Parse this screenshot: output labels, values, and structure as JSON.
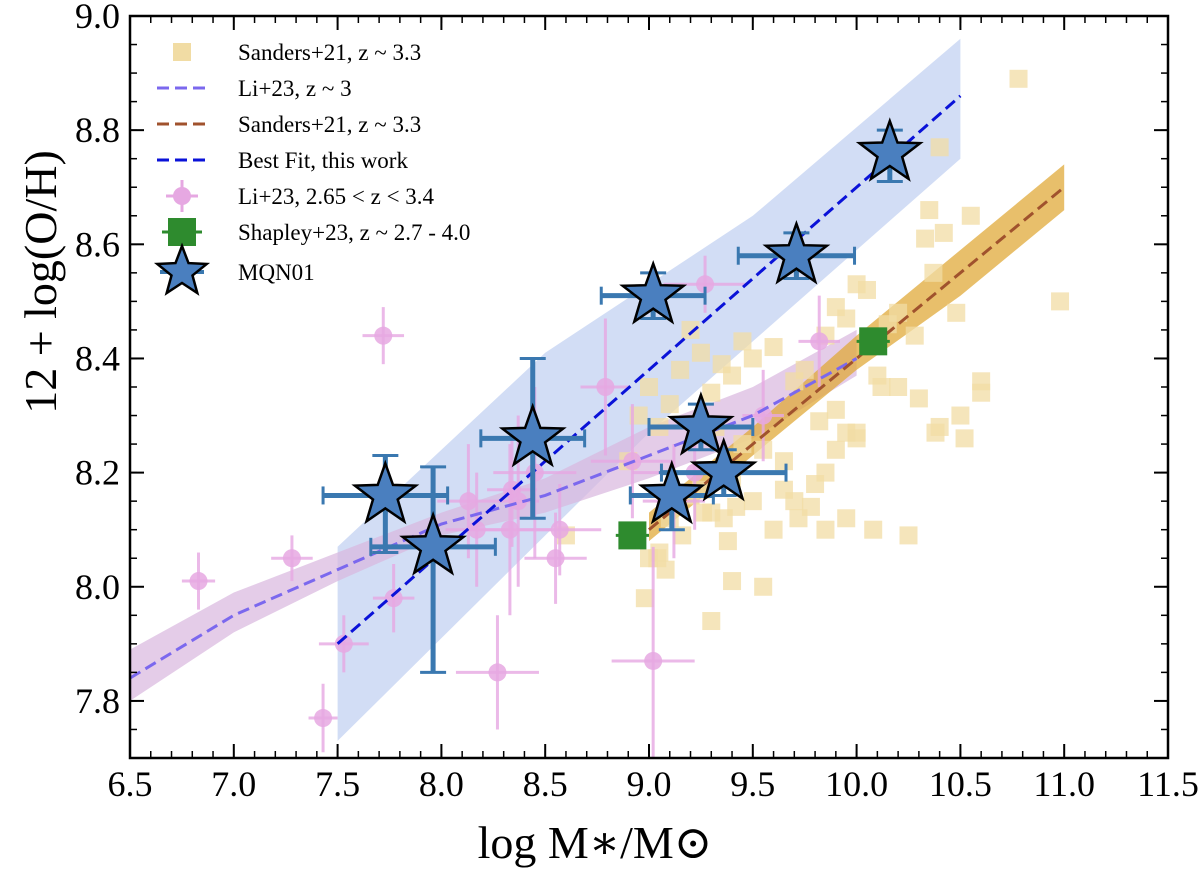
{
  "chart_data": {
    "type": "scatter",
    "title": "",
    "xlabel": "log M∗/M⊙",
    "ylabel": "12 + log(O/H)",
    "xlim": [
      6.5,
      11.5
    ],
    "ylim": [
      7.7,
      9.0
    ],
    "x_ticks": [
      "6.5",
      "7.0",
      "7.5",
      "8.0",
      "8.5",
      "9.0",
      "9.5",
      "10.0",
      "10.5",
      "11.0",
      "11.5"
    ],
    "y_ticks": [
      "7.8",
      "8.0",
      "8.2",
      "8.4",
      "8.6",
      "8.8",
      "9.0"
    ],
    "legend_position": "top-left",
    "grid": false,
    "colors": {
      "sanders_points": "#f1dca4",
      "li_line": "#7b68ee",
      "li_band": "#d8b6de",
      "sanders_line": "#a0522d",
      "sanders_band": "#e0a93a",
      "best_fit_line": "#0a12d8",
      "best_fit_band": "#c3d2f2",
      "li_points": "#e6a8e2",
      "shapley": "#2e8b2e",
      "mqn01": "#4a7fbf",
      "mqn01_err": "#3a78b0"
    },
    "legend": [
      "Sanders+21, z ~ 3.3",
      "Li+23, z ~ 3",
      "Sanders+21, z ~ 3.3",
      "Best Fit, this work",
      "Li+23,  2.65 < z < 3.4",
      "Shapley+23, z ~ 2.7 - 4.0",
      "MQN01"
    ],
    "series": [
      {
        "name": "Sanders+21, z ~ 3.3",
        "kind": "points",
        "x": [
          10.78,
          10.98,
          10.4,
          10.35,
          10.33,
          10.42,
          10.55,
          10.37,
          10.48,
          10.28,
          10.2,
          10.15,
          10.05,
          10.0,
          9.95,
          9.9,
          9.85,
          9.75,
          9.7,
          9.6,
          9.5,
          9.45,
          9.4,
          9.35,
          9.3,
          9.25,
          9.2,
          9.15,
          9.1,
          9.05,
          9.0,
          8.95,
          8.9,
          9.9,
          9.95,
          10.0,
          9.85,
          9.8,
          9.7,
          9.65,
          9.55,
          9.45,
          9.4,
          9.35,
          9.3,
          9.25,
          9.2,
          9.1,
          9.05,
          9.0,
          10.1,
          10.2,
          10.3,
          10.4,
          10.5,
          10.6,
          10.52,
          10.38,
          10.6,
          9.85,
          9.72,
          9.78,
          9.6,
          9.5,
          9.42,
          9.36,
          9.26,
          9.2,
          9.16,
          9.08,
          9.04,
          8.98,
          9.3,
          9.4,
          9.55,
          9.65,
          9.95,
          10.08,
          10.12,
          10.25,
          9.82,
          9.9,
          10.0,
          9.38,
          9.32,
          8.6
        ],
        "y": [
          8.89,
          8.5,
          8.77,
          8.66,
          8.61,
          8.62,
          8.65,
          8.55,
          8.48,
          8.44,
          8.48,
          8.46,
          8.52,
          8.53,
          8.47,
          8.49,
          8.44,
          8.38,
          8.36,
          8.42,
          8.4,
          8.43,
          8.37,
          8.39,
          8.34,
          8.41,
          8.45,
          8.38,
          8.32,
          8.28,
          8.35,
          8.3,
          8.22,
          8.24,
          8.27,
          8.26,
          8.2,
          8.18,
          8.15,
          8.22,
          8.24,
          8.25,
          8.19,
          8.2,
          8.13,
          8.17,
          8.16,
          8.12,
          8.06,
          8.05,
          8.37,
          8.35,
          8.33,
          8.28,
          8.3,
          8.36,
          8.26,
          8.27,
          8.34,
          8.1,
          8.12,
          8.14,
          8.1,
          8.15,
          8.14,
          8.12,
          8.13,
          8.16,
          8.09,
          8.03,
          8.05,
          7.98,
          7.94,
          8.01,
          8.0,
          8.17,
          8.12,
          8.1,
          8.35,
          8.09,
          8.29,
          8.31,
          8.27,
          8.08,
          8.28,
          8.09
        ]
      },
      {
        "name": "Li+23, z ~ 3",
        "kind": "line",
        "x": [
          6.5,
          7.0,
          7.5,
          8.0,
          8.5,
          9.0,
          9.5,
          10.0
        ],
        "y": [
          7.84,
          7.95,
          8.03,
          8.11,
          8.16,
          8.23,
          8.3,
          8.4
        ],
        "band_low": [
          7.8,
          7.92,
          8.01,
          8.09,
          8.13,
          8.19,
          8.26,
          8.37
        ],
        "band_high": [
          7.89,
          7.99,
          8.06,
          8.13,
          8.19,
          8.28,
          8.35,
          8.45
        ]
      },
      {
        "name": "Sanders+21, z ~ 3.3",
        "kind": "line",
        "x": [
          9.0,
          9.5,
          10.0,
          10.5,
          11.0
        ],
        "y": [
          8.1,
          8.25,
          8.4,
          8.55,
          8.7
        ],
        "band_low": [
          8.08,
          8.23,
          8.38,
          8.51,
          8.66
        ],
        "band_high": [
          8.13,
          8.28,
          8.44,
          8.59,
          8.74
        ]
      },
      {
        "name": "Best Fit, this work",
        "kind": "line",
        "x": [
          7.5,
          10.5
        ],
        "y": [
          7.9,
          8.86
        ],
        "band_low_x": [
          7.5,
          9.0,
          10.5
        ],
        "band_low": [
          7.73,
          8.27,
          8.75
        ],
        "band_high_x": [
          7.5,
          8.5,
          9.5,
          10.5
        ],
        "band_high": [
          8.07,
          8.41,
          8.65,
          8.96
        ]
      },
      {
        "name": "Li+23,  2.65 < z < 3.4",
        "kind": "points",
        "x": [
          6.83,
          7.28,
          7.43,
          7.53,
          7.72,
          7.77,
          8.13,
          8.17,
          8.27,
          8.33,
          8.34,
          8.37,
          8.55,
          8.57,
          8.79,
          9.02,
          9.12,
          9.22,
          9.27,
          9.55,
          9.82,
          8.92,
          8.45
        ],
        "y": [
          8.01,
          8.05,
          7.77,
          7.9,
          8.44,
          7.98,
          8.15,
          8.1,
          7.85,
          8.1,
          8.17,
          8.15,
          8.05,
          8.1,
          8.35,
          7.87,
          8.15,
          8.2,
          8.53,
          8.3,
          8.43,
          8.22,
          8.2
        ],
        "xerr": [
          0.08,
          0.1,
          0.07,
          0.12,
          0.1,
          0.1,
          0.15,
          0.15,
          0.2,
          0.2,
          0.12,
          0.1,
          0.15,
          0.2,
          0.12,
          0.2,
          0.15,
          0.3,
          0.2,
          0.1,
          0.1,
          0.2,
          0.2
        ],
        "yerr": [
          0.05,
          0.04,
          0.06,
          0.05,
          0.05,
          0.06,
          0.1,
          0.1,
          0.1,
          0.15,
          0.1,
          0.15,
          0.08,
          0.08,
          0.12,
          0.2,
          0.1,
          0.1,
          0.05,
          0.08,
          0.08,
          0.1,
          0.15
        ]
      },
      {
        "name": "Shapley+23, z ~ 2.7 - 4.0",
        "kind": "points",
        "x": [
          8.92,
          10.08
        ],
        "y": [
          8.09,
          8.43
        ],
        "xerr": [
          0.08,
          0.08
        ],
        "yerr": [
          0.02,
          0.02
        ]
      },
      {
        "name": "MQN01",
        "kind": "points",
        "x": [
          7.73,
          7.96,
          8.44,
          9.02,
          9.25,
          9.11,
          9.36,
          9.71,
          10.16
        ],
        "y": [
          8.16,
          8.07,
          8.26,
          8.51,
          8.28,
          8.16,
          8.2,
          8.58,
          8.76
        ],
        "xerr": [
          0.3,
          0.3,
          0.25,
          0.25,
          0.25,
          0.2,
          0.3,
          0.28,
          0.05
        ],
        "yerr_low": [
          0.1,
          0.22,
          0.14,
          0.04,
          0.04,
          0.06,
          0.04,
          0.04,
          0.05
        ],
        "yerr_high": [
          0.07,
          0.14,
          0.14,
          0.04,
          0.04,
          0.04,
          0.04,
          0.04,
          0.04
        ]
      }
    ]
  }
}
